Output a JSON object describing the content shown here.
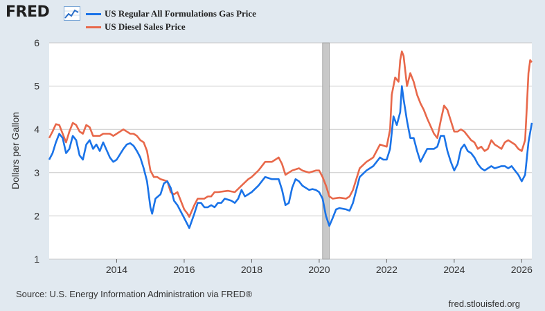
{
  "header": {
    "logo_text": "FRED",
    "logo_icon": "trend-line-icon"
  },
  "colors": {
    "gas": "#1a73e8",
    "diesel": "#e8684a",
    "recession": "#c8c8c8",
    "grid": "#c8c8c8",
    "plot_bg": "#ffffff",
    "page_bg": "#e1e9f0"
  },
  "footer": {
    "source": "Source: U.S. Energy Information Administration via FRED®",
    "url": "fred.stlouisfed.org"
  },
  "chart_data": {
    "type": "line",
    "title": "",
    "xlabel": "",
    "ylabel": "Dollars per Gallon",
    "xlim": [
      2012.0,
      2026.3
    ],
    "ylim": [
      1,
      6
    ],
    "yticks": [
      1,
      2,
      3,
      4,
      5,
      6
    ],
    "xticks": [
      2014,
      2016,
      2018,
      2020,
      2022,
      2024,
      2026
    ],
    "grid": "horizontal",
    "legend_position": "top-left",
    "recession_band": [
      2020.1,
      2020.3
    ],
    "series": [
      {
        "name": "US Regular All Formulations Gas Price",
        "color": "#1a73e8",
        "points": [
          [
            2012.0,
            3.3
          ],
          [
            2012.1,
            3.45
          ],
          [
            2012.2,
            3.7
          ],
          [
            2012.3,
            3.9
          ],
          [
            2012.4,
            3.8
          ],
          [
            2012.5,
            3.45
          ],
          [
            2012.6,
            3.55
          ],
          [
            2012.7,
            3.85
          ],
          [
            2012.8,
            3.75
          ],
          [
            2012.9,
            3.4
          ],
          [
            2013.0,
            3.3
          ],
          [
            2013.1,
            3.65
          ],
          [
            2013.2,
            3.75
          ],
          [
            2013.3,
            3.55
          ],
          [
            2013.4,
            3.65
          ],
          [
            2013.5,
            3.5
          ],
          [
            2013.6,
            3.7
          ],
          [
            2013.8,
            3.35
          ],
          [
            2013.9,
            3.25
          ],
          [
            2014.0,
            3.3
          ],
          [
            2014.2,
            3.55
          ],
          [
            2014.3,
            3.65
          ],
          [
            2014.4,
            3.68
          ],
          [
            2014.5,
            3.62
          ],
          [
            2014.6,
            3.5
          ],
          [
            2014.7,
            3.35
          ],
          [
            2014.8,
            3.1
          ],
          [
            2014.9,
            2.8
          ],
          [
            2015.0,
            2.2
          ],
          [
            2015.05,
            2.05
          ],
          [
            2015.15,
            2.4
          ],
          [
            2015.3,
            2.5
          ],
          [
            2015.4,
            2.75
          ],
          [
            2015.5,
            2.8
          ],
          [
            2015.6,
            2.65
          ],
          [
            2015.7,
            2.35
          ],
          [
            2015.8,
            2.25
          ],
          [
            2015.9,
            2.1
          ],
          [
            2016.0,
            1.95
          ],
          [
            2016.1,
            1.8
          ],
          [
            2016.15,
            1.72
          ],
          [
            2016.3,
            2.05
          ],
          [
            2016.4,
            2.3
          ],
          [
            2016.5,
            2.3
          ],
          [
            2016.6,
            2.2
          ],
          [
            2016.7,
            2.2
          ],
          [
            2016.8,
            2.25
          ],
          [
            2016.9,
            2.2
          ],
          [
            2017.0,
            2.3
          ],
          [
            2017.1,
            2.3
          ],
          [
            2017.2,
            2.4
          ],
          [
            2017.4,
            2.35
          ],
          [
            2017.5,
            2.3
          ],
          [
            2017.6,
            2.4
          ],
          [
            2017.7,
            2.6
          ],
          [
            2017.8,
            2.45
          ],
          [
            2017.9,
            2.5
          ],
          [
            2018.0,
            2.55
          ],
          [
            2018.2,
            2.7
          ],
          [
            2018.4,
            2.9
          ],
          [
            2018.6,
            2.85
          ],
          [
            2018.8,
            2.85
          ],
          [
            2018.9,
            2.6
          ],
          [
            2019.0,
            2.25
          ],
          [
            2019.1,
            2.3
          ],
          [
            2019.2,
            2.65
          ],
          [
            2019.3,
            2.85
          ],
          [
            2019.4,
            2.8
          ],
          [
            2019.5,
            2.7
          ],
          [
            2019.6,
            2.65
          ],
          [
            2019.7,
            2.6
          ],
          [
            2019.8,
            2.62
          ],
          [
            2019.9,
            2.6
          ],
          [
            2020.0,
            2.55
          ],
          [
            2020.1,
            2.4
          ],
          [
            2020.2,
            2.0
          ],
          [
            2020.3,
            1.77
          ],
          [
            2020.4,
            1.95
          ],
          [
            2020.5,
            2.15
          ],
          [
            2020.6,
            2.18
          ],
          [
            2020.8,
            2.15
          ],
          [
            2020.9,
            2.12
          ],
          [
            2021.0,
            2.3
          ],
          [
            2021.2,
            2.9
          ],
          [
            2021.4,
            3.05
          ],
          [
            2021.6,
            3.15
          ],
          [
            2021.8,
            3.35
          ],
          [
            2021.9,
            3.3
          ],
          [
            2022.0,
            3.3
          ],
          [
            2022.1,
            3.55
          ],
          [
            2022.2,
            4.3
          ],
          [
            2022.3,
            4.1
          ],
          [
            2022.4,
            4.4
          ],
          [
            2022.45,
            5.0
          ],
          [
            2022.5,
            4.7
          ],
          [
            2022.6,
            4.2
          ],
          [
            2022.7,
            3.8
          ],
          [
            2022.8,
            3.8
          ],
          [
            2022.9,
            3.5
          ],
          [
            2023.0,
            3.25
          ],
          [
            2023.1,
            3.4
          ],
          [
            2023.2,
            3.55
          ],
          [
            2023.4,
            3.55
          ],
          [
            2023.5,
            3.6
          ],
          [
            2023.6,
            3.85
          ],
          [
            2023.7,
            3.85
          ],
          [
            2023.8,
            3.5
          ],
          [
            2023.9,
            3.25
          ],
          [
            2024.0,
            3.05
          ],
          [
            2024.1,
            3.2
          ],
          [
            2024.2,
            3.55
          ],
          [
            2024.3,
            3.65
          ],
          [
            2024.4,
            3.5
          ],
          [
            2024.5,
            3.45
          ],
          [
            2024.6,
            3.35
          ],
          [
            2024.7,
            3.2
          ],
          [
            2024.8,
            3.1
          ],
          [
            2024.9,
            3.05
          ],
          [
            2025.0,
            3.1
          ],
          [
            2025.1,
            3.15
          ],
          [
            2025.2,
            3.1
          ],
          [
            2025.4,
            3.15
          ],
          [
            2025.5,
            3.15
          ],
          [
            2025.6,
            3.1
          ],
          [
            2025.7,
            3.15
          ],
          [
            2025.8,
            3.05
          ],
          [
            2025.9,
            2.95
          ],
          [
            2026.0,
            2.8
          ],
          [
            2026.1,
            2.95
          ],
          [
            2026.2,
            3.7
          ],
          [
            2026.3,
            4.15
          ]
        ]
      },
      {
        "name": "US Diesel Sales Price",
        "color": "#e8684a",
        "points": [
          [
            2012.0,
            3.8
          ],
          [
            2012.1,
            3.95
          ],
          [
            2012.2,
            4.12
          ],
          [
            2012.3,
            4.1
          ],
          [
            2012.4,
            3.9
          ],
          [
            2012.5,
            3.7
          ],
          [
            2012.6,
            3.95
          ],
          [
            2012.7,
            4.15
          ],
          [
            2012.8,
            4.1
          ],
          [
            2012.9,
            3.95
          ],
          [
            2013.0,
            3.9
          ],
          [
            2013.1,
            4.1
          ],
          [
            2013.2,
            4.05
          ],
          [
            2013.3,
            3.85
          ],
          [
            2013.4,
            3.85
          ],
          [
            2013.5,
            3.85
          ],
          [
            2013.6,
            3.9
          ],
          [
            2013.7,
            3.9
          ],
          [
            2013.8,
            3.9
          ],
          [
            2013.9,
            3.85
          ],
          [
            2014.0,
            3.9
          ],
          [
            2014.2,
            4.0
          ],
          [
            2014.3,
            3.95
          ],
          [
            2014.4,
            3.9
          ],
          [
            2014.5,
            3.9
          ],
          [
            2014.6,
            3.85
          ],
          [
            2014.7,
            3.75
          ],
          [
            2014.8,
            3.7
          ],
          [
            2014.9,
            3.5
          ],
          [
            2015.0,
            3.05
          ],
          [
            2015.1,
            2.9
          ],
          [
            2015.2,
            2.9
          ],
          [
            2015.3,
            2.85
          ],
          [
            2015.5,
            2.8
          ],
          [
            2015.6,
            2.55
          ],
          [
            2015.7,
            2.5
          ],
          [
            2015.8,
            2.55
          ],
          [
            2015.9,
            2.35
          ],
          [
            2016.0,
            2.15
          ],
          [
            2016.1,
            2.05
          ],
          [
            2016.15,
            1.98
          ],
          [
            2016.3,
            2.25
          ],
          [
            2016.4,
            2.4
          ],
          [
            2016.6,
            2.4
          ],
          [
            2016.7,
            2.45
          ],
          [
            2016.8,
            2.45
          ],
          [
            2016.9,
            2.55
          ],
          [
            2017.0,
            2.55
          ],
          [
            2017.3,
            2.58
          ],
          [
            2017.5,
            2.55
          ],
          [
            2017.7,
            2.7
          ],
          [
            2017.9,
            2.85
          ],
          [
            2018.0,
            2.9
          ],
          [
            2018.2,
            3.05
          ],
          [
            2018.4,
            3.25
          ],
          [
            2018.6,
            3.25
          ],
          [
            2018.8,
            3.35
          ],
          [
            2018.9,
            3.2
          ],
          [
            2019.0,
            2.95
          ],
          [
            2019.2,
            3.05
          ],
          [
            2019.4,
            3.1
          ],
          [
            2019.5,
            3.05
          ],
          [
            2019.7,
            3.0
          ],
          [
            2019.9,
            3.05
          ],
          [
            2020.0,
            3.05
          ],
          [
            2020.1,
            2.9
          ],
          [
            2020.2,
            2.7
          ],
          [
            2020.3,
            2.45
          ],
          [
            2020.4,
            2.4
          ],
          [
            2020.6,
            2.42
          ],
          [
            2020.8,
            2.4
          ],
          [
            2020.9,
            2.45
          ],
          [
            2021.0,
            2.6
          ],
          [
            2021.2,
            3.1
          ],
          [
            2021.4,
            3.25
          ],
          [
            2021.6,
            3.35
          ],
          [
            2021.8,
            3.65
          ],
          [
            2022.0,
            3.6
          ],
          [
            2022.1,
            4.0
          ],
          [
            2022.15,
            4.8
          ],
          [
            2022.25,
            5.2
          ],
          [
            2022.35,
            5.1
          ],
          [
            2022.4,
            5.6
          ],
          [
            2022.45,
            5.8
          ],
          [
            2022.5,
            5.7
          ],
          [
            2022.6,
            5.0
          ],
          [
            2022.7,
            5.3
          ],
          [
            2022.8,
            5.1
          ],
          [
            2022.9,
            4.8
          ],
          [
            2023.0,
            4.6
          ],
          [
            2023.1,
            4.45
          ],
          [
            2023.2,
            4.25
          ],
          [
            2023.4,
            3.9
          ],
          [
            2023.5,
            3.8
          ],
          [
            2023.6,
            4.2
          ],
          [
            2023.7,
            4.55
          ],
          [
            2023.8,
            4.45
          ],
          [
            2023.9,
            4.2
          ],
          [
            2024.0,
            3.95
          ],
          [
            2024.1,
            3.95
          ],
          [
            2024.2,
            4.0
          ],
          [
            2024.3,
            3.95
          ],
          [
            2024.4,
            3.85
          ],
          [
            2024.5,
            3.75
          ],
          [
            2024.6,
            3.7
          ],
          [
            2024.7,
            3.55
          ],
          [
            2024.8,
            3.6
          ],
          [
            2024.9,
            3.5
          ],
          [
            2025.0,
            3.55
          ],
          [
            2025.1,
            3.75
          ],
          [
            2025.2,
            3.65
          ],
          [
            2025.3,
            3.6
          ],
          [
            2025.4,
            3.55
          ],
          [
            2025.5,
            3.7
          ],
          [
            2025.6,
            3.75
          ],
          [
            2025.7,
            3.7
          ],
          [
            2025.8,
            3.65
          ],
          [
            2025.9,
            3.55
          ],
          [
            2026.0,
            3.5
          ],
          [
            2026.1,
            3.75
          ],
          [
            2026.15,
            4.5
          ],
          [
            2026.2,
            5.3
          ],
          [
            2026.25,
            5.6
          ],
          [
            2026.3,
            5.55
          ]
        ]
      }
    ]
  }
}
